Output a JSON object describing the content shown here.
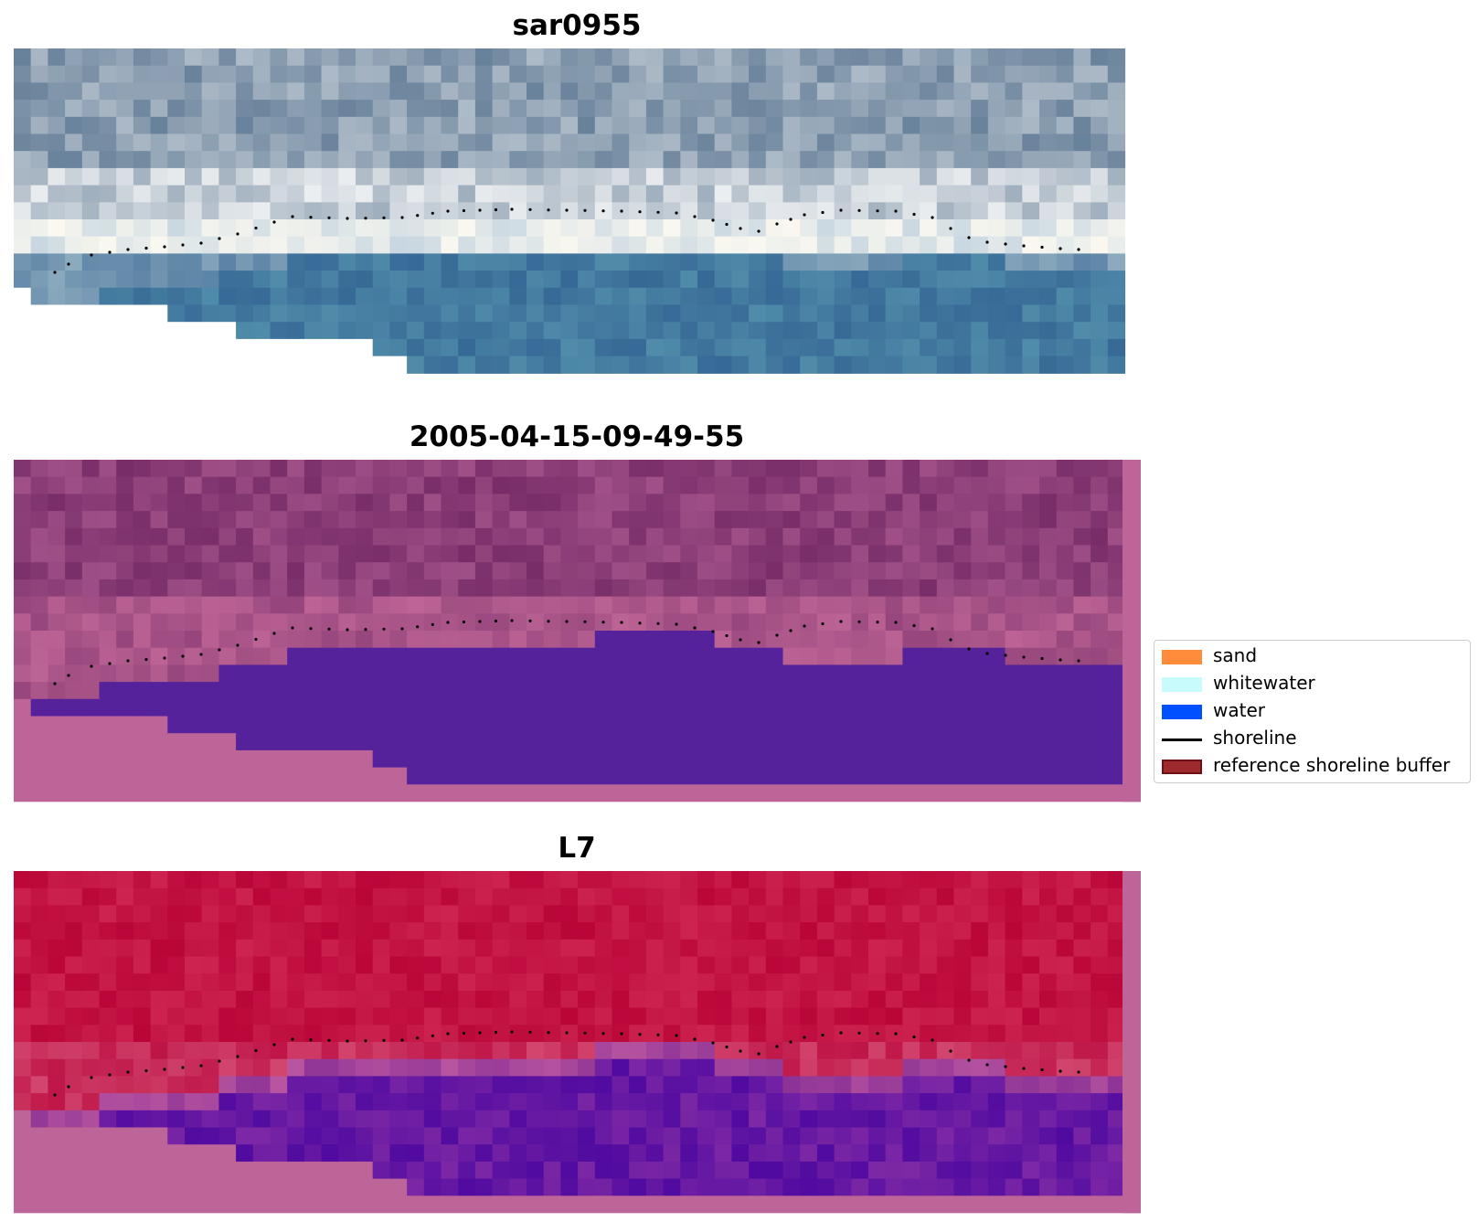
{
  "panels": [
    {
      "title": "sar0955",
      "style": "rgb"
    },
    {
      "title": "2005-04-15-09-49-55",
      "style": "classified"
    },
    {
      "title": "L7",
      "style": "falsecolor"
    }
  ],
  "legend": {
    "items": [
      {
        "label": "sand",
        "type": "patch",
        "color": "#ff8c3a"
      },
      {
        "label": "whitewater",
        "type": "patch",
        "color": "#c8fcfc"
      },
      {
        "label": "water",
        "type": "patch",
        "color": "#0050ff"
      },
      {
        "label": "shoreline",
        "type": "line",
        "color": "#000000"
      },
      {
        "label": "reference shoreline buffer",
        "type": "patch",
        "color": "#9e2a2e",
        "edge": "#6e1016"
      }
    ]
  },
  "colors": {
    "water_class": "#55229b",
    "nodata_mask": "#bd6598",
    "shoreline": "#000000"
  }
}
